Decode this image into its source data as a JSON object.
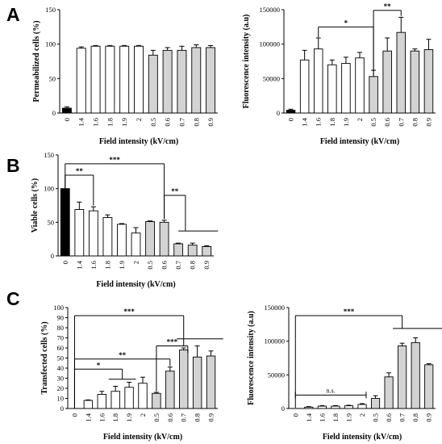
{
  "chart_data": [
    {
      "id": "A-left",
      "type": "bar",
      "panel_letter": "A",
      "ylabel": "Permeabilized cells (%)",
      "xlabel": "Field intensity (kV/cm)",
      "ylim": [
        0,
        150
      ],
      "yticks": [
        0,
        50,
        100,
        150
      ],
      "categories": [
        "0",
        "1.4",
        "1.6",
        "1.8",
        "1.9",
        "2",
        "0.5",
        "0.6",
        "0.7",
        "0.8",
        "0.9"
      ],
      "values": [
        7,
        94,
        97,
        97,
        97,
        97,
        84,
        91,
        91,
        95,
        95
      ],
      "errors": [
        2,
        2,
        1,
        1,
        1,
        1,
        7,
        4,
        6,
        4,
        3
      ],
      "fills": [
        "#000000",
        "#ffffff",
        "#ffffff",
        "#ffffff",
        "#ffffff",
        "#ffffff",
        "#d3d3d3",
        "#d3d3d3",
        "#d3d3d3",
        "#d3d3d3",
        "#d3d3d3"
      ],
      "annotations": []
    },
    {
      "id": "A-right",
      "type": "bar",
      "ylabel": "Fluorescence intensity (a.u)",
      "xlabel": "Field intensity (kV/cm)",
      "ylim": [
        0,
        150000
      ],
      "yticks": [
        0,
        50000,
        100000,
        150000
      ],
      "categories": [
        "0",
        "1.4",
        "1.6",
        "1.8",
        "1.9",
        "2",
        "0.5",
        "0.6",
        "0.7",
        "0.8",
        "0.9"
      ],
      "values": [
        4000,
        77000,
        93000,
        70000,
        72000,
        80000,
        53000,
        90000,
        117000,
        90000,
        92000
      ],
      "errors": [
        1500,
        14000,
        16000,
        7000,
        9000,
        8000,
        9000,
        19000,
        22000,
        3000,
        15000
      ],
      "fills": [
        "#000000",
        "#ffffff",
        "#ffffff",
        "#ffffff",
        "#ffffff",
        "#ffffff",
        "#d3d3d3",
        "#d3d3d3",
        "#d3d3d3",
        "#d3d3d3",
        "#d3d3d3"
      ],
      "annotations": [
        {
          "type": "bracket",
          "from": 2,
          "to": 6,
          "level": 125000,
          "label": "*",
          "drop_left": 15000,
          "drop_right": 70000
        },
        {
          "type": "bracket",
          "from": 6,
          "to": 8,
          "level": 149000,
          "label": "**",
          "drop_left": 88000,
          "drop_right": 8000
        }
      ]
    },
    {
      "id": "B",
      "type": "bar",
      "panel_letter": "B",
      "ylabel": "Viable cells (%)",
      "xlabel": "Field intensity (kV/cm)",
      "ylim": [
        0,
        150
      ],
      "yticks": [
        0,
        50,
        100,
        150
      ],
      "categories": [
        "0",
        "1.4",
        "1.6",
        "1.8",
        "1.9",
        "2",
        "0.5",
        "0.6",
        "0.7",
        "0.8",
        "0.9"
      ],
      "values": [
        100,
        69,
        67,
        57,
        47,
        34,
        51,
        50,
        18,
        16,
        14
      ],
      "errors": [
        0,
        11,
        6,
        4,
        1,
        8,
        1,
        3,
        1,
        3,
        1
      ],
      "fills": [
        "#000000",
        "#ffffff",
        "#ffffff",
        "#ffffff",
        "#ffffff",
        "#ffffff",
        "#d3d3d3",
        "#d3d3d3",
        "#d3d3d3",
        "#d3d3d3",
        "#d3d3d3"
      ],
      "annotations": [
        {
          "type": "bracket",
          "from": 0,
          "to": 2,
          "level": 120,
          "label": "**",
          "drop_left": 20,
          "drop_right": 45
        },
        {
          "type": "bracket",
          "from": 0,
          "to": 7,
          "level": 137,
          "label": "***",
          "drop_left": 37,
          "drop_right": 82
        },
        {
          "type": "bracket",
          "from": 7,
          "to": 8.5,
          "level": 90,
          "label": "**",
          "drop_left": 35,
          "drop_right": 53
        },
        {
          "type": "hline",
          "from": 8,
          "to": 10.8,
          "level": 37
        }
      ]
    },
    {
      "id": "C-left",
      "type": "bar",
      "panel_letter": "C",
      "ylabel": "Transfected cells (%)",
      "xlabel": "Field intensity (kV/cm)",
      "ylim": [
        0,
        100
      ],
      "yticks": [
        0,
        10,
        20,
        30,
        40,
        50,
        60,
        70,
        80,
        90,
        100
      ],
      "categories": [
        "0",
        "1.4",
        "1.6",
        "1.8",
        "1.9",
        "2",
        "0.5",
        "0.6",
        "0.7",
        "0.8",
        "0.9"
      ],
      "values": [
        0,
        8,
        14,
        17,
        21,
        25,
        15,
        37,
        58,
        51,
        52
      ],
      "errors": [
        0,
        0.5,
        3,
        5,
        5,
        6,
        1,
        4,
        2,
        11,
        5
      ],
      "fills": [
        "#000000",
        "#ffffff",
        "#ffffff",
        "#ffffff",
        "#ffffff",
        "#ffffff",
        "#d3d3d3",
        "#d3d3d3",
        "#d3d3d3",
        "#d3d3d3",
        "#d3d3d3"
      ],
      "annotations": [
        {
          "type": "bracket",
          "from": 0,
          "to": 3.5,
          "level": 39,
          "label": "*",
          "drop_left": 39,
          "drop_right": 10
        },
        {
          "type": "hline",
          "from": 2.5,
          "to": 4.5,
          "level": 29
        },
        {
          "type": "bracket",
          "from": 0,
          "to": 7,
          "level": 49,
          "label": "**",
          "drop_left": 49,
          "drop_right": 7
        },
        {
          "type": "bracket",
          "from": 0,
          "to": 8,
          "level": 92,
          "label": "***",
          "drop_left": 92,
          "drop_right": 30
        },
        {
          "type": "bracket",
          "from": 6,
          "to": 8.3,
          "level": 62,
          "label": "***",
          "drop_left": 45,
          "drop_right": 7
        },
        {
          "type": "hline",
          "from": 7.5,
          "to": 10.9,
          "level": 69
        }
      ]
    },
    {
      "id": "C-right",
      "type": "bar",
      "ylabel": "Fluorescence intensity (a.u)",
      "xlabel": "Field intensity (kV/cm)",
      "ylim": [
        0,
        150000
      ],
      "yticks": [
        0,
        50000,
        100000,
        150000
      ],
      "categories": [
        "0",
        "1.4",
        "1.6",
        "1.8",
        "1.9",
        "2",
        "0.5",
        "0.6",
        "0.7",
        "0.8",
        "0.9"
      ],
      "values": [
        0,
        2000,
        3500,
        3500,
        4000,
        6000,
        15000,
        47000,
        93000,
        98000,
        65000
      ],
      "errors": [
        0,
        800,
        800,
        800,
        800,
        1200,
        4000,
        6000,
        4000,
        7000,
        1500
      ],
      "fills": [
        "#000000",
        "#ffffff",
        "#ffffff",
        "#ffffff",
        "#ffffff",
        "#ffffff",
        "#d3d3d3",
        "#d3d3d3",
        "#d3d3d3",
        "#d3d3d3",
        "#d3d3d3"
      ],
      "annotations": [
        {
          "type": "bracket",
          "from": 0,
          "to": 8,
          "level": 138000,
          "label": "***",
          "drop_left": 137000,
          "drop_right": 19000
        },
        {
          "type": "hline",
          "from": 7.3,
          "to": 11,
          "level": 119000
        },
        {
          "type": "ns",
          "from": 0,
          "to": 5.3,
          "level": 20000,
          "label": "n.s."
        }
      ]
    }
  ]
}
